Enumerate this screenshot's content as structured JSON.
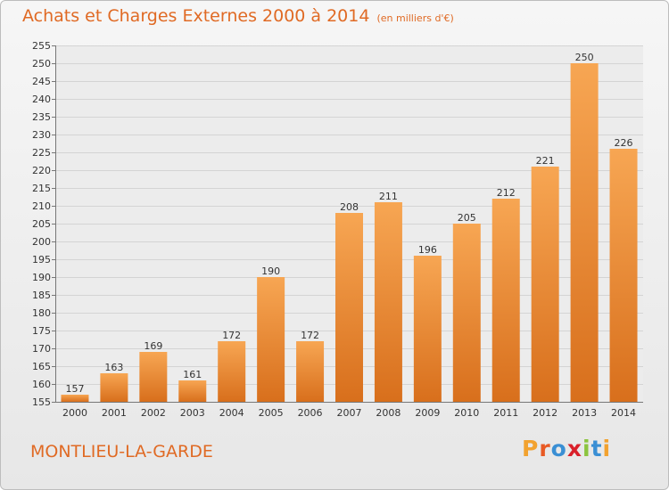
{
  "header": {
    "title": "Achats et Charges Externes 2000 à 2014",
    "unit": "(en milliers d'€)"
  },
  "footer": {
    "place": "MONTLIEU-LA-GARDE",
    "logo_text": "Proxiti"
  },
  "colors": {
    "accent": "#e06a24",
    "bar_light": "#f7a653",
    "bar_dark": "#d86f1c",
    "logo_letters": [
      "#f2a22f",
      "#e85a24",
      "#3a8fd4",
      "#d9202a",
      "#8cc43f",
      "#3a8fd4",
      "#f2a22f"
    ]
  },
  "chart_data": {
    "type": "bar",
    "title": "Achats et Charges Externes 2000 à 2014",
    "subtitle": "(en milliers d'€)",
    "xlabel": "",
    "ylabel": "",
    "categories": [
      "2000",
      "2001",
      "2002",
      "2003",
      "2004",
      "2005",
      "2006",
      "2007",
      "2008",
      "2009",
      "2010",
      "2011",
      "2012",
      "2013",
      "2014"
    ],
    "values": [
      157,
      163,
      169,
      161,
      172,
      190,
      172,
      208,
      211,
      196,
      205,
      212,
      221,
      250,
      226
    ],
    "ylim": [
      155,
      255
    ],
    "yticks": [
      155,
      160,
      165,
      170,
      175,
      180,
      185,
      190,
      195,
      200,
      205,
      210,
      215,
      220,
      225,
      230,
      235,
      240,
      245,
      250,
      255
    ],
    "grid": true,
    "legend": "none"
  }
}
